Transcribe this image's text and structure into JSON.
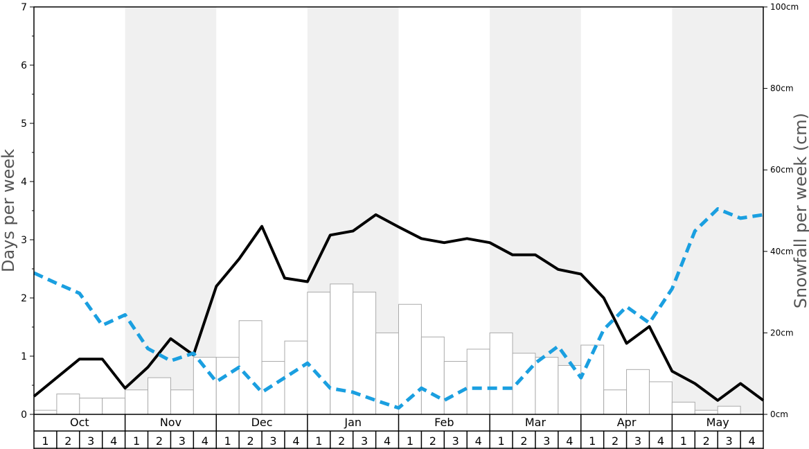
{
  "chart_data": {
    "type": "bar+line",
    "ylabel_left": "Days per week",
    "ylabel_right": "Snowfall per week (cm)",
    "ylim_left": [
      0,
      7
    ],
    "ylim_right": [
      0,
      100
    ],
    "left_ticks": [
      "0",
      "1",
      "2",
      "3",
      "4",
      "5",
      "6",
      "7"
    ],
    "right_ticks": [
      "0cm",
      "20cm",
      "40cm",
      "60cm",
      "80cm",
      "100cm"
    ],
    "months": [
      "Oct",
      "Nov",
      "Dec",
      "Jan",
      "Feb",
      "Mar",
      "Apr",
      "May"
    ],
    "weeks": [
      "1",
      "2",
      "3",
      "4"
    ],
    "colors": {
      "band": "#f0f0f0",
      "bar_fill": "#ffffff",
      "bar_stroke": "#aaaaaa",
      "solid_line": "#000000",
      "dashed_line": "#1a9fe0"
    },
    "snowfall_cm": [
      1,
      5,
      4,
      4,
      6,
      9,
      6,
      14,
      14,
      23,
      13,
      18,
      30,
      32,
      30,
      20,
      27,
      19,
      13,
      16,
      20,
      15,
      14,
      12,
      17,
      6,
      11,
      8,
      3,
      1,
      2,
      0
    ],
    "series": [
      {
        "style": "solid",
        "values": [
          0.31,
          0.63,
          0.95,
          0.95,
          0.45,
          0.81,
          1.3,
          1.02,
          2.2,
          2.67,
          3.23,
          2.34,
          2.28,
          3.08,
          3.15,
          3.43,
          3.22,
          3.02,
          2.95,
          3.02,
          2.95,
          2.74,
          2.74,
          2.49,
          2.41,
          2.0,
          1.22,
          1.51,
          0.74,
          0.53,
          0.24,
          0.53,
          0.24
        ]
      },
      {
        "style": "dashed",
        "values": [
          2.43,
          2.25,
          2.08,
          1.53,
          1.71,
          1.13,
          0.92,
          1.05,
          0.56,
          0.81,
          0.38,
          0.63,
          0.88,
          0.45,
          0.38,
          0.24,
          0.11,
          0.45,
          0.24,
          0.45,
          0.45,
          0.45,
          0.88,
          1.17,
          0.63,
          1.46,
          1.85,
          1.57,
          2.16,
          3.15,
          3.53,
          3.37,
          3.43
        ]
      }
    ]
  }
}
